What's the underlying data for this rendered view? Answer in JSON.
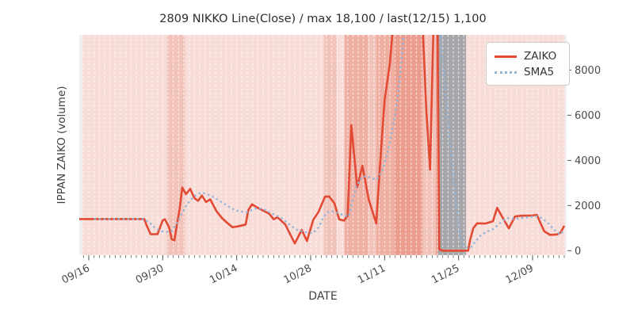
{
  "figure": {
    "title": "2809 NIKKO Line(Close) / max 18,100 / last(12/15) 1,100",
    "x_label": "DATE",
    "y_label": "IPPAN ZAIKO (volume)",
    "legend": [
      {
        "name": "ZAIKO",
        "style": "solid",
        "color": "#e24a33"
      },
      {
        "name": "SMA5",
        "style": "dotted",
        "color": "#92b5d8"
      }
    ]
  },
  "colors": {
    "zaiko_line": "#e24a33",
    "sma5_line": "#92b5d8",
    "plot_background": "#eff0f4",
    "band_base": "#f7dcd8",
    "band_L2": "#f2c3bb",
    "band_L3": "#efafa3",
    "band_L4": "#eb9d8f",
    "band_gray": "#a6a6ab",
    "gridline": "#ffffff",
    "tick": "#555555",
    "tick_label": "#4a4a4a"
  },
  "chart_data": {
    "type": "line",
    "title": "2809 NIKKO Line(Close) / max 18,100 / last(12/15) 1,100",
    "xlabel": "DATE",
    "ylabel": "IPPAN ZAIKO (volume)",
    "annotations": {
      "max_value": 18100,
      "last_date": "12/15",
      "last_value": 1100
    },
    "x_axis": {
      "unit": "days since 09/16",
      "range_days": [
        -1.8,
        90.45
      ],
      "ticks": [
        {
          "d": 0,
          "label": "09/16"
        },
        {
          "d": 14,
          "label": "09/30"
        },
        {
          "d": 28,
          "label": "10/14"
        },
        {
          "d": 42,
          "label": "10/28"
        },
        {
          "d": 56,
          "label": "11/11"
        },
        {
          "d": 70,
          "label": "11/25"
        },
        {
          "d": 84,
          "label": "12/09"
        }
      ],
      "minor_tick_every_days": 1
    },
    "y_axis": {
      "range": [
        -200,
        9560
      ],
      "ticks": [
        0,
        2000,
        4000,
        6000,
        8000
      ],
      "side": "right"
    },
    "grid": {
      "vertical_daily_white_dashed": true,
      "horizontal": false
    },
    "legend_position": "upper right",
    "bands": [
      {
        "from_d": -1.2,
        "to_d": 90.15,
        "level": "base"
      },
      {
        "from_d": 14.8,
        "to_d": 18.2,
        "level": "L2"
      },
      {
        "from_d": 44.5,
        "to_d": 46.9,
        "level": "L2"
      },
      {
        "from_d": 48.4,
        "to_d": 52.8,
        "level": "L3"
      },
      {
        "from_d": 52.8,
        "to_d": 54.4,
        "level": "L2"
      },
      {
        "from_d": 54.4,
        "to_d": 57.8,
        "level": "L3"
      },
      {
        "from_d": 57.8,
        "to_d": 63.2,
        "level": "L4"
      },
      {
        "from_d": 63.2,
        "to_d": 65.7,
        "level": "L2"
      },
      {
        "from_d": 65.7,
        "to_d": 66.1,
        "level": "L4"
      },
      {
        "from_d": 66.1,
        "to_d": 71.4,
        "level": "gray"
      }
    ],
    "series": [
      {
        "name": "ZAIKO",
        "color": "#e24a33",
        "style": "solid",
        "width": 2.6,
        "points": [
          [
            -1.8,
            1400
          ],
          [
            0,
            1400
          ],
          [
            2,
            1400
          ],
          [
            4,
            1400
          ],
          [
            6,
            1400
          ],
          [
            8,
            1400
          ],
          [
            10.5,
            1400
          ],
          [
            11,
            1100
          ],
          [
            11.7,
            730
          ],
          [
            13,
            730
          ],
          [
            14,
            1340
          ],
          [
            14.4,
            1390
          ],
          [
            15.2,
            1040
          ],
          [
            15.7,
            510
          ],
          [
            16.2,
            455
          ],
          [
            17.2,
            1860
          ],
          [
            17.7,
            2795
          ],
          [
            18.4,
            2505
          ],
          [
            19.2,
            2740
          ],
          [
            20,
            2330
          ],
          [
            20.7,
            2210
          ],
          [
            21.4,
            2445
          ],
          [
            22.2,
            2155
          ],
          [
            23,
            2270
          ],
          [
            24.2,
            1740
          ],
          [
            25.2,
            1450
          ],
          [
            26,
            1275
          ],
          [
            27.2,
            1040
          ],
          [
            28.2,
            1075
          ],
          [
            29.7,
            1160
          ],
          [
            30.2,
            1800
          ],
          [
            30.9,
            2050
          ],
          [
            32,
            1900
          ],
          [
            34.2,
            1630
          ],
          [
            35,
            1390
          ],
          [
            35.7,
            1480
          ],
          [
            37.2,
            1160
          ],
          [
            39,
            320
          ],
          [
            40.3,
            920
          ],
          [
            41.3,
            430
          ],
          [
            42.5,
            1370
          ],
          [
            43.5,
            1720
          ],
          [
            44.7,
            2390
          ],
          [
            45.5,
            2400
          ],
          [
            46.5,
            2100
          ],
          [
            47.4,
            1390
          ],
          [
            48.3,
            1330
          ],
          [
            49,
            1550
          ],
          [
            49.7,
            5560
          ],
          [
            50.8,
            2800
          ],
          [
            51.8,
            3760
          ],
          [
            53,
            2260
          ],
          [
            54.4,
            1210
          ],
          [
            55.3,
            4400
          ],
          [
            56,
            6660
          ],
          [
            57,
            8300
          ],
          [
            58.3,
            12000
          ],
          [
            59.5,
            15500
          ],
          [
            61,
            18100
          ],
          [
            62.3,
            14500
          ],
          [
            63,
            11000
          ],
          [
            63.9,
            6180
          ],
          [
            64.6,
            3590
          ],
          [
            65.3,
            10500
          ],
          [
            66,
            10500
          ],
          [
            66.35,
            50
          ],
          [
            67,
            0
          ],
          [
            68.5,
            0
          ],
          [
            70,
            0
          ],
          [
            71.8,
            0
          ],
          [
            72.2,
            500
          ],
          [
            72.8,
            1000
          ],
          [
            73.5,
            1210
          ],
          [
            75,
            1200
          ],
          [
            76.5,
            1300
          ],
          [
            77.3,
            1900
          ],
          [
            78.2,
            1520
          ],
          [
            79.5,
            990
          ],
          [
            80.7,
            1520
          ],
          [
            82,
            1550
          ],
          [
            84,
            1560
          ],
          [
            84.8,
            1590
          ],
          [
            86.2,
            860
          ],
          [
            87.3,
            700
          ],
          [
            88.6,
            720
          ],
          [
            89.3,
            800
          ],
          [
            90,
            1100
          ]
        ]
      },
      {
        "name": "SMA5",
        "color": "#92b5d8",
        "style": "dotted",
        "width": 2.4,
        "points": [
          [
            1,
            1400
          ],
          [
            3,
            1400
          ],
          [
            5,
            1400
          ],
          [
            7,
            1400
          ],
          [
            9,
            1400
          ],
          [
            10.5,
            1390
          ],
          [
            11.7,
            1200
          ],
          [
            12.6,
            1000
          ],
          [
            13.6,
            870
          ],
          [
            14.6,
            820
          ],
          [
            15.6,
            860
          ],
          [
            16.6,
            1170
          ],
          [
            17.6,
            1630
          ],
          [
            18.6,
            2050
          ],
          [
            19.6,
            2330
          ],
          [
            20.6,
            2510
          ],
          [
            21.4,
            2575
          ],
          [
            22.4,
            2500
          ],
          [
            23.4,
            2400
          ],
          [
            24.4,
            2260
          ],
          [
            25.6,
            2085
          ],
          [
            26.8,
            1900
          ],
          [
            27.8,
            1790
          ],
          [
            28.8,
            1730
          ],
          [
            29.8,
            1700
          ],
          [
            30.8,
            1790
          ],
          [
            31.9,
            1900
          ],
          [
            33.4,
            1800
          ],
          [
            34.9,
            1625
          ],
          [
            36.4,
            1450
          ],
          [
            37.9,
            1170
          ],
          [
            39.4,
            920
          ],
          [
            40.9,
            820
          ],
          [
            42.4,
            780
          ],
          [
            43.6,
            1050
          ],
          [
            44.4,
            1500
          ],
          [
            45.4,
            1730
          ],
          [
            46.4,
            1740
          ],
          [
            47.9,
            1600
          ],
          [
            49.2,
            1510
          ],
          [
            50.7,
            2900
          ],
          [
            51.7,
            3250
          ],
          [
            52.6,
            3310
          ],
          [
            53.6,
            3200
          ],
          [
            54.5,
            3150
          ],
          [
            55.5,
            3500
          ],
          [
            56.5,
            4300
          ],
          [
            57.5,
            5400
          ],
          [
            58.4,
            6600
          ],
          [
            58.9,
            7800
          ],
          [
            59.8,
            10000
          ],
          [
            66.5,
            10000
          ],
          [
            66.8,
            8850
          ],
          [
            67.3,
            7600
          ],
          [
            67.8,
            6300
          ],
          [
            68.3,
            5000
          ],
          [
            68.8,
            3800
          ],
          [
            69.3,
            2600
          ],
          [
            69.8,
            1500
          ],
          [
            70.3,
            600
          ],
          [
            70.8,
            250
          ],
          [
            71.5,
            150
          ],
          [
            72.3,
            130
          ],
          [
            72.9,
            330
          ],
          [
            74.2,
            680
          ],
          [
            75.4,
            850
          ],
          [
            76.5,
            950
          ],
          [
            77.5,
            1150
          ],
          [
            78.5,
            1350
          ],
          [
            79.5,
            1450
          ],
          [
            80.5,
            1400
          ],
          [
            82,
            1450
          ],
          [
            83.5,
            1500
          ],
          [
            85,
            1520
          ],
          [
            86,
            1400
          ],
          [
            87,
            1200
          ],
          [
            87.8,
            1000
          ],
          [
            88.6,
            820
          ],
          [
            89.3,
            720
          ],
          [
            90,
            950
          ]
        ]
      }
    ]
  }
}
